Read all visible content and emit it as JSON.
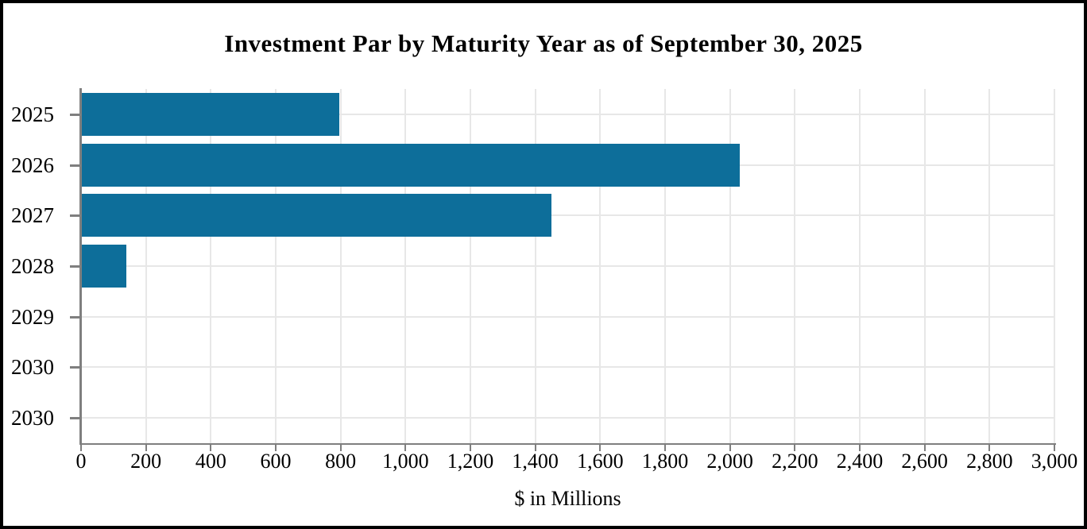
{
  "window": {
    "background_color": "#ffffff",
    "frame_border_color": "#000000"
  },
  "chart_data": {
    "type": "bar",
    "orientation": "horizontal",
    "title": "Investment Par by Maturity Year as of September 30, 2025",
    "xlabel": "$ in Millions",
    "ylabel": "",
    "categories": [
      "2025",
      "2026",
      "2027",
      "2028",
      "2029",
      "2030",
      "2030"
    ],
    "values": [
      795,
      2030,
      1450,
      140,
      0,
      0,
      0
    ],
    "xlim": [
      0,
      3000
    ],
    "x_tick_step": 200,
    "x_tick_labels": [
      "0",
      "200",
      "400",
      "600",
      "800",
      "1,000",
      "1,200",
      "1,400",
      "1,600",
      "1,800",
      "2,000",
      "2,200",
      "2,400",
      "2,600",
      "2,800",
      "3,000"
    ],
    "grid": true,
    "legend_position": "none",
    "bar_color": "#0d6e9a",
    "axis_color": "#7f7f7f",
    "gridline_color": "#e7e7e7",
    "text_color": "#000000"
  }
}
